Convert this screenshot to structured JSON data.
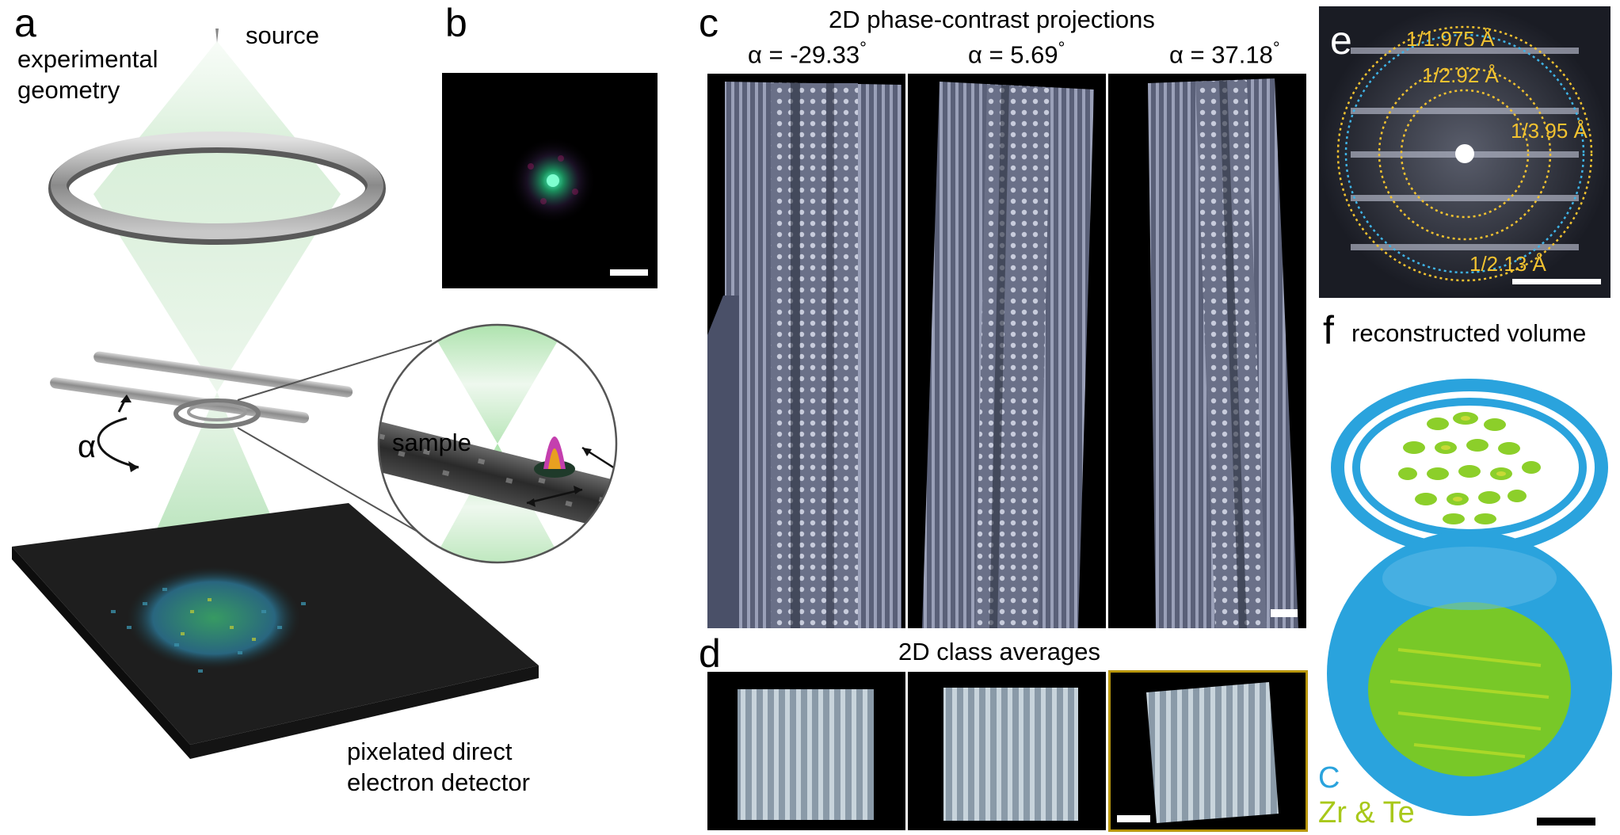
{
  "panels": {
    "a": {
      "label": "a",
      "title": "experimental geometry",
      "source": "source",
      "alpha": "α",
      "sample": "sample",
      "detector": "pixelated direct electron detector"
    },
    "b": {
      "label": "b"
    },
    "c": {
      "label": "c",
      "title": "2D phase-contrast projections",
      "angles": [
        "α = -29.33",
        "α = 5.69",
        "α = 37.18"
      ],
      "degree": "°"
    },
    "d": {
      "label": "d",
      "title": "2D class averages"
    },
    "e": {
      "label": "e",
      "rings": [
        "1/1.975 Å",
        "1/2.92 Å",
        "1/3.95 Å",
        "1/2.13 Å"
      ]
    },
    "f": {
      "label": "f",
      "title": "reconstructed volume",
      "legend_c": "C",
      "legend_zrte": "Zr & Te"
    }
  },
  "colors": {
    "beam": "#bfe8c0",
    "ring_yellow": "#f2c230",
    "ring_blue": "#3fb3e6",
    "carbon": "#2aa3dd",
    "zrte": "#8ccf2a",
    "gold_frame": "#b8960c"
  }
}
